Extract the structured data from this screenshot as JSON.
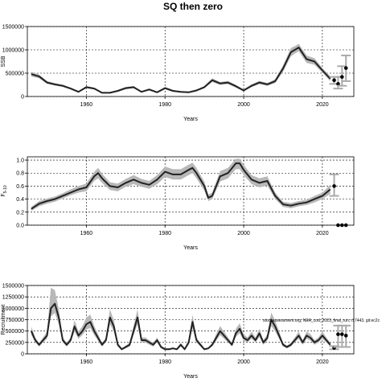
{
  "title": "SQ then zero",
  "chart_data": [
    {
      "type": "line",
      "title": "",
      "xlabel": "Years",
      "ylabel": "SSB",
      "xlim": [
        1945,
        2028
      ],
      "ylim": [
        0,
        1500000
      ],
      "xticks": [
        1960,
        1980,
        2000,
        2020
      ],
      "yticks": [
        0,
        500000,
        1000000,
        1500000
      ],
      "yticklabels": [
        "0",
        "500000",
        "1000000",
        "1500000"
      ],
      "grid": true,
      "annotation": "",
      "series": [
        {
          "x": [
            1946,
            1948,
            1950,
            1952,
            1954,
            1956,
            1958,
            1960,
            1962,
            1964,
            1966,
            1968,
            1970,
            1972,
            1974,
            1976,
            1978,
            1980,
            1982,
            1984,
            1986,
            1988,
            1990,
            1992,
            1994,
            1996,
            1998,
            2000,
            2002,
            2004,
            2006,
            2008,
            2010,
            2012,
            2013,
            2014,
            2016,
            2018,
            2020,
            2022
          ],
          "y": [
            480000,
            430000,
            300000,
            260000,
            230000,
            170000,
            100000,
            200000,
            170000,
            80000,
            80000,
            120000,
            180000,
            200000,
            100000,
            150000,
            90000,
            180000,
            120000,
            100000,
            90000,
            130000,
            200000,
            350000,
            280000,
            300000,
            220000,
            130000,
            230000,
            300000,
            260000,
            330000,
            600000,
            950000,
            1000000,
            1050000,
            800000,
            750000,
            560000,
            380000
          ],
          "lower": [
            430000,
            390000,
            270000,
            235000,
            205000,
            150000,
            85000,
            175000,
            150000,
            65000,
            65000,
            100000,
            155000,
            175000,
            85000,
            130000,
            75000,
            155000,
            100000,
            85000,
            75000,
            110000,
            175000,
            310000,
            250000,
            265000,
            190000,
            110000,
            200000,
            265000,
            230000,
            290000,
            530000,
            860000,
            920000,
            970000,
            720000,
            680000,
            510000,
            330000
          ],
          "upper": [
            530000,
            470000,
            330000,
            285000,
            255000,
            190000,
            115000,
            225000,
            190000,
            95000,
            95000,
            140000,
            205000,
            225000,
            115000,
            170000,
            105000,
            205000,
            140000,
            115000,
            105000,
            150000,
            225000,
            390000,
            310000,
            335000,
            250000,
            150000,
            260000,
            335000,
            290000,
            370000,
            670000,
            1040000,
            1080000,
            1130000,
            880000,
            820000,
            610000,
            430000
          ]
        }
      ],
      "projection": [
        {
          "x": 2023,
          "y": 350000,
          "lower": 270000,
          "upper": 420000
        },
        {
          "x": 2024,
          "y": 270000,
          "lower": 170000,
          "upper": 420000
        },
        {
          "x": 2025,
          "y": 420000,
          "lower": 230000,
          "upper": 650000
        },
        {
          "x": 2026,
          "y": 610000,
          "lower": 330000,
          "upper": 880000
        }
      ]
    },
    {
      "type": "line",
      "title": "",
      "xlabel": "Years",
      "ylabel": "F",
      "ylabel_sub": "5-10",
      "xlim": [
        1945,
        2028
      ],
      "ylim": [
        0,
        1.05
      ],
      "xticks": [
        1960,
        1980,
        2000,
        2020
      ],
      "yticks": [
        0,
        0.2,
        0.4,
        0.6,
        0.8,
        1.0
      ],
      "yticklabels": [
        "0.0",
        "0.2",
        "0.4",
        "0.6",
        "0.8",
        "1.0"
      ],
      "grid": true,
      "annotation": "",
      "series": [
        {
          "x": [
            1946,
            1948,
            1950,
            1952,
            1954,
            1956,
            1958,
            1960,
            1962,
            1963,
            1964,
            1966,
            1968,
            1970,
            1972,
            1974,
            1976,
            1978,
            1980,
            1982,
            1984,
            1986,
            1987,
            1988,
            1990,
            1991,
            1992,
            1994,
            1996,
            1998,
            1999,
            2000,
            2002,
            2004,
            2006,
            2008,
            2010,
            2012,
            2014,
            2016,
            2018,
            2020,
            2022
          ],
          "y": [
            0.25,
            0.33,
            0.37,
            0.4,
            0.45,
            0.5,
            0.55,
            0.58,
            0.75,
            0.8,
            0.72,
            0.6,
            0.58,
            0.65,
            0.7,
            0.65,
            0.62,
            0.7,
            0.82,
            0.78,
            0.78,
            0.85,
            0.88,
            0.8,
            0.6,
            0.42,
            0.45,
            0.75,
            0.8,
            0.95,
            0.95,
            0.85,
            0.7,
            0.65,
            0.68,
            0.45,
            0.32,
            0.3,
            0.33,
            0.35,
            0.4,
            0.45,
            0.55
          ],
          "lower": [
            0.22,
            0.29,
            0.33,
            0.36,
            0.41,
            0.46,
            0.5,
            0.52,
            0.68,
            0.72,
            0.65,
            0.54,
            0.52,
            0.59,
            0.63,
            0.59,
            0.56,
            0.63,
            0.74,
            0.7,
            0.7,
            0.77,
            0.8,
            0.72,
            0.53,
            0.37,
            0.4,
            0.67,
            0.72,
            0.86,
            0.86,
            0.77,
            0.63,
            0.58,
            0.61,
            0.4,
            0.28,
            0.26,
            0.29,
            0.31,
            0.35,
            0.4,
            0.48
          ],
          "upper": [
            0.28,
            0.37,
            0.41,
            0.44,
            0.49,
            0.55,
            0.6,
            0.64,
            0.82,
            0.88,
            0.79,
            0.66,
            0.64,
            0.71,
            0.77,
            0.71,
            0.68,
            0.77,
            0.9,
            0.86,
            0.86,
            0.93,
            0.96,
            0.88,
            0.67,
            0.47,
            0.5,
            0.83,
            0.88,
            1.02,
            1.02,
            0.93,
            0.77,
            0.72,
            0.75,
            0.5,
            0.36,
            0.34,
            0.37,
            0.39,
            0.45,
            0.5,
            0.62
          ]
        }
      ],
      "projection": [
        {
          "x": 2023,
          "y": 0.6,
          "lower": 0.45,
          "upper": 0.78
        },
        {
          "x": 2024,
          "y": 0.0,
          "lower": 0.0,
          "upper": 0.0
        },
        {
          "x": 2025,
          "y": 0.0,
          "lower": 0.0,
          "upper": 0.0
        },
        {
          "x": 2026,
          "y": 0.0,
          "lower": 0.0,
          "upper": 0.0
        }
      ]
    },
    {
      "type": "line",
      "title": "",
      "xlabel": "Years",
      "ylabel": "Recruitment",
      "xlim": [
        1945,
        2028
      ],
      "ylim": [
        0,
        1500000
      ],
      "xticks": [
        1960,
        1980,
        2000,
        2020
      ],
      "yticks": [
        0,
        250000,
        500000,
        750000,
        1000000,
        1250000,
        1500000
      ],
      "yticklabels": [
        "0",
        "250000",
        "500000",
        "750000",
        "1000000",
        "1250000",
        "1500000"
      ],
      "grid": true,
      "annotation": "stockassessment.org, NEA_cod_2023_final_run, r17443, git:ec2c",
      "series": [
        {
          "x": [
            1946,
            1947,
            1948,
            1949,
            1950,
            1951,
            1952,
            1953,
            1954,
            1955,
            1956,
            1957,
            1958,
            1959,
            1960,
            1961,
            1962,
            1963,
            1964,
            1965,
            1966,
            1967,
            1968,
            1969,
            1970,
            1971,
            1972,
            1973,
            1974,
            1975,
            1976,
            1977,
            1978,
            1979,
            1980,
            1981,
            1982,
            1983,
            1984,
            1985,
            1986,
            1987,
            1988,
            1989,
            1990,
            1991,
            1992,
            1993,
            1994,
            1995,
            1996,
            1997,
            1998,
            1999,
            2000,
            2001,
            2002,
            2003,
            2004,
            2005,
            2006,
            2007,
            2008,
            2009,
            2010,
            2011,
            2012,
            2013,
            2014,
            2015,
            2016,
            2017,
            2018,
            2019,
            2020,
            2021,
            2022
          ],
          "y": [
            500000,
            300000,
            200000,
            300000,
            400000,
            1000000,
            1100000,
            800000,
            300000,
            200000,
            300000,
            600000,
            400000,
            500000,
            650000,
            700000,
            500000,
            350000,
            200000,
            300000,
            800000,
            600000,
            200000,
            100000,
            150000,
            200000,
            500000,
            800000,
            300000,
            300000,
            250000,
            200000,
            300000,
            150000,
            100000,
            100000,
            120000,
            100000,
            200000,
            100000,
            250000,
            700000,
            300000,
            200000,
            100000,
            120000,
            200000,
            350000,
            500000,
            400000,
            300000,
            200000,
            450000,
            550000,
            350000,
            300000,
            400000,
            300000,
            450000,
            250000,
            350000,
            750000,
            600000,
            400000,
            200000,
            150000,
            200000,
            300000,
            400000,
            250000,
            400000,
            350000,
            250000,
            300000,
            400000,
            300000,
            200000
          ],
          "lower": [
            420000,
            250000,
            160000,
            250000,
            330000,
            820000,
            900000,
            650000,
            250000,
            160000,
            250000,
            490000,
            330000,
            410000,
            530000,
            570000,
            410000,
            290000,
            160000,
            250000,
            650000,
            490000,
            160000,
            80000,
            120000,
            160000,
            410000,
            650000,
            250000,
            250000,
            200000,
            160000,
            250000,
            120000,
            80000,
            80000,
            100000,
            80000,
            160000,
            80000,
            200000,
            570000,
            250000,
            160000,
            80000,
            100000,
            160000,
            290000,
            410000,
            330000,
            250000,
            160000,
            370000,
            450000,
            290000,
            250000,
            330000,
            250000,
            370000,
            200000,
            290000,
            610000,
            490000,
            330000,
            160000,
            120000,
            160000,
            250000,
            330000,
            200000,
            330000,
            290000,
            200000,
            250000,
            330000,
            250000,
            160000
          ],
          "upper": [
            600000,
            360000,
            240000,
            360000,
            490000,
            1450000,
            1400000,
            990000,
            360000,
            240000,
            360000,
            740000,
            490000,
            610000,
            800000,
            860000,
            610000,
            430000,
            240000,
            360000,
            980000,
            740000,
            240000,
            120000,
            180000,
            240000,
            610000,
            980000,
            360000,
            360000,
            300000,
            240000,
            360000,
            180000,
            120000,
            120000,
            140000,
            120000,
            240000,
            120000,
            300000,
            860000,
            360000,
            240000,
            120000,
            140000,
            240000,
            430000,
            610000,
            490000,
            360000,
            240000,
            550000,
            670000,
            430000,
            360000,
            490000,
            360000,
            550000,
            300000,
            430000,
            910000,
            730000,
            490000,
            240000,
            180000,
            240000,
            360000,
            490000,
            300000,
            490000,
            430000,
            300000,
            360000,
            490000,
            360000,
            240000
          ]
        }
      ],
      "projection": [
        {
          "x": 2023,
          "y": 130000,
          "lower": 100000,
          "upper": 170000
        },
        {
          "x": 2024,
          "y": 430000,
          "lower": 150000,
          "upper": 620000
        },
        {
          "x": 2025,
          "y": 430000,
          "lower": 150000,
          "upper": 620000
        },
        {
          "x": 2026,
          "y": 400000,
          "lower": 150000,
          "upper": 620000
        }
      ]
    }
  ]
}
